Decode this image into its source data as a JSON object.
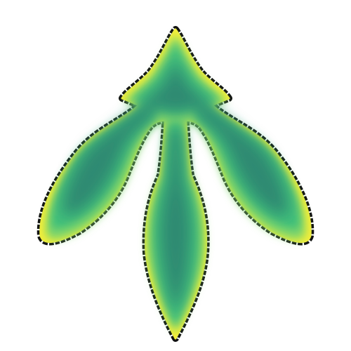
{
  "shape": {
    "outline_color": "#111111",
    "edge_color": "#f2ee3a",
    "outer_fill_color": "#7fd66a",
    "mid_fill_color": "#3fbf7a",
    "core_fill_color": "#2f8a72",
    "background_color": "#ffffff"
  }
}
